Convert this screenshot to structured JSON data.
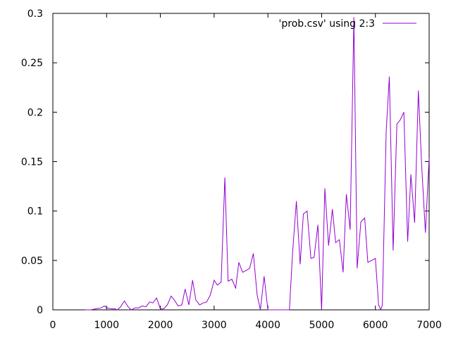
{
  "chart_data": {
    "type": "line",
    "xlim": [
      0,
      7000
    ],
    "ylim": [
      0,
      0.3
    ],
    "x_ticks": [
      0,
      1000,
      2000,
      3000,
      4000,
      5000,
      6000,
      7000
    ],
    "y_ticks": [
      0,
      0.05,
      0.1,
      0.15,
      0.2,
      0.25,
      0.3
    ],
    "x_tick_labels": [
      "0",
      "1000",
      "2000",
      "3000",
      "4000",
      "5000",
      "6000",
      "7000"
    ],
    "y_tick_labels": [
      "0",
      "0.05",
      "0.1",
      "0.15",
      "0.2",
      "0.25",
      "0.3"
    ],
    "grid": false,
    "legend_position": "top-right",
    "series": [
      {
        "name": "'prob.csv' using 2:3",
        "color": "#9400d3",
        "x": [
          600,
          700,
          800,
          900,
          960,
          1000,
          1100,
          1160,
          1200,
          1260,
          1330,
          1400,
          1460,
          1530,
          1600,
          1660,
          1730,
          1800,
          1860,
          1930,
          2000,
          2060,
          2130,
          2200,
          2260,
          2330,
          2400,
          2460,
          2530,
          2600,
          2660,
          2730,
          2800,
          2860,
          2930,
          3000,
          3060,
          3130,
          3200,
          3260,
          3330,
          3400,
          3460,
          3530,
          3600,
          3660,
          3730,
          3800,
          3860,
          3930,
          4000,
          4060,
          4100,
          4400,
          4460,
          4530,
          4600,
          4660,
          4730,
          4800,
          4860,
          4930,
          5000,
          5060,
          5130,
          5200,
          5260,
          5330,
          5400,
          5460,
          5530,
          5600,
          5660,
          5730,
          5800,
          5860,
          5930,
          6000,
          6060,
          6100,
          6130,
          6200,
          6260,
          6330,
          6400,
          6460,
          6530,
          6600,
          6660,
          6730,
          6800,
          6860,
          6930,
          7000
        ],
        "y": [
          0,
          0,
          0.001,
          0.002,
          0.004,
          0.002,
          0.001,
          0.001,
          0,
          0.003,
          0.009,
          0.003,
          0,
          0.002,
          0.002,
          0.004,
          0.003,
          0.008,
          0.007,
          0.012,
          0.001,
          0.001,
          0.005,
          0.014,
          0.01,
          0.004,
          0.005,
          0.021,
          0.005,
          0.03,
          0.01,
          0.005,
          0.007,
          0.008,
          0.015,
          0.03,
          0.025,
          0.028,
          0.134,
          0.029,
          0.031,
          0.022,
          0.048,
          0.038,
          0.04,
          0.042,
          0.057,
          0.015,
          0,
          0.034,
          0,
          0,
          0,
          0,
          0.058,
          0.11,
          0.046,
          0.097,
          0.1,
          0.052,
          0.053,
          0.086,
          0,
          0.123,
          0.065,
          0.102,
          0.068,
          0.071,
          0.038,
          0.117,
          0.081,
          0.296,
          0.042,
          0.089,
          0.093,
          0.048,
          0.05,
          0.052,
          0.005,
          0,
          0.005,
          0.18,
          0.236,
          0.06,
          0.188,
          0.192,
          0.2,
          0.069,
          0.137,
          0.088,
          0.222,
          0.147,
          0.078,
          0.154
        ]
      }
    ]
  }
}
